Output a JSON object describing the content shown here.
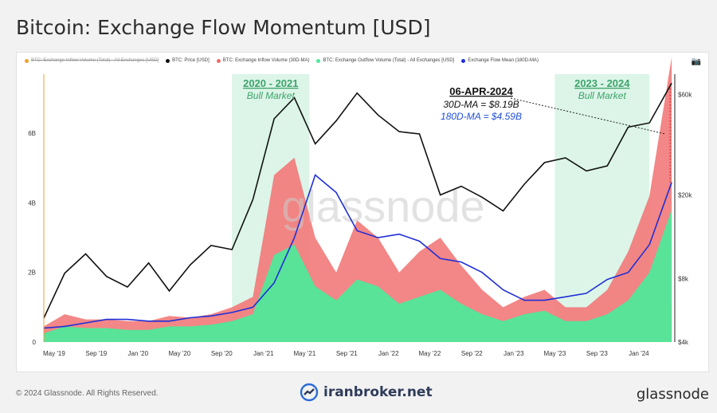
{
  "page": {
    "title": "Bitcoin: Exchange Flow Momentum [USD]",
    "copyright": "© 2024 Glassnode. All Rights Reserved.",
    "watermark_text": "iranbroker.net",
    "brand": "glassnode",
    "chart_watermark": "glassnode"
  },
  "legend": [
    {
      "label": "BTC: Exchange Inflow Volume (Total) - All Exchanges [USD]",
      "color": "#f0a030",
      "struck": true
    },
    {
      "label": "BTC: Price [USD]",
      "color": "#111111",
      "struck": false
    },
    {
      "label": "BTC: Exchange Inflow Volume (30D-MA)",
      "color": "#f06b6b",
      "struck": false
    },
    {
      "label": "BTC: Exchange Outflow Volume (Total) - All Exchanges [USD]",
      "color": "#4fe89a",
      "struck": false
    },
    {
      "label": "Exchange Flow Mean (180D-MA)",
      "color": "#1f2fd6",
      "struck": false
    }
  ],
  "annotations": {
    "bull1_title": "2020 - 2021",
    "bull1_sub": "Bull Market",
    "bull2_title": "2023 - 2024",
    "bull2_sub": "Bull Market",
    "date": "06-APR-2024",
    "ma30": "30D-MA = $8.19B",
    "ma180": "180D-MA = $4.59B"
  },
  "colors": {
    "inflow": "#f27979",
    "outflow": "#4fe89a",
    "price": "#111111",
    "mean": "#1f2fd6",
    "bull_zone": "#dcf5e8",
    "bull_text": "#3da36a",
    "anno_blue": "#1f4fd6",
    "left_axis_line": "#f0a030",
    "current_marker": "#d02020"
  },
  "chart_data": {
    "type": "area",
    "title": "Bitcoin: Exchange Flow Momentum [USD]",
    "x_ticks": [
      "May '19",
      "Sep '19",
      "Jan '20",
      "May '20",
      "Sep '20",
      "Jan '21",
      "May '21",
      "Sep '21",
      "Jan '22",
      "May '22",
      "Sep '22",
      "Jan '23",
      "May '23",
      "Sep '23",
      "Jan '24"
    ],
    "y_left_ticks": [
      "0",
      "2B",
      "4B",
      "6B"
    ],
    "y_left_range": [
      0,
      7.7
    ],
    "y_right_ticks": [
      "$4k",
      "$8k",
      "$20k",
      "$60k"
    ],
    "y_right_range": [
      4000,
      75000
    ],
    "y_right_scale": "log",
    "grid": false,
    "legend_position": "top",
    "x": [
      "2019-04",
      "2019-06",
      "2019-08",
      "2019-10",
      "2019-12",
      "2020-02",
      "2020-04",
      "2020-06",
      "2020-08",
      "2020-10",
      "2020-12",
      "2021-02",
      "2021-04",
      "2021-06",
      "2021-08",
      "2021-10",
      "2021-12",
      "2022-02",
      "2022-04",
      "2022-06",
      "2022-08",
      "2022-10",
      "2022-12",
      "2023-02",
      "2023-04",
      "2023-06",
      "2023-08",
      "2023-10",
      "2023-12",
      "2024-02",
      "2024-04"
    ],
    "series": [
      {
        "name": "BTC: Exchange Inflow Volume (30D-MA)",
        "values": [
          0.45,
          0.8,
          0.65,
          0.65,
          0.6,
          0.6,
          0.75,
          0.7,
          0.8,
          1.0,
          1.3,
          4.8,
          5.3,
          3.0,
          2.0,
          3.5,
          3.0,
          2.0,
          2.6,
          3.0,
          2.2,
          1.5,
          1.0,
          1.3,
          1.5,
          1.0,
          1.0,
          1.5,
          2.6,
          4.2,
          8.19
        ]
      },
      {
        "name": "BTC: Exchange Outflow Volume (Total) - All Exchanges [USD]",
        "values": [
          0.25,
          0.45,
          0.4,
          0.4,
          0.35,
          0.35,
          0.45,
          0.45,
          0.5,
          0.6,
          0.8,
          2.5,
          2.8,
          1.6,
          1.2,
          1.8,
          1.6,
          1.1,
          1.3,
          1.5,
          1.1,
          0.8,
          0.6,
          0.8,
          0.9,
          0.6,
          0.6,
          0.8,
          1.2,
          2.0,
          3.8
        ]
      },
      {
        "name": "Exchange Flow Mean (180D-MA)",
        "values": [
          0.4,
          0.45,
          0.55,
          0.65,
          0.65,
          0.6,
          0.6,
          0.7,
          0.75,
          0.85,
          1.0,
          1.7,
          3.0,
          4.8,
          4.3,
          3.2,
          3.0,
          3.1,
          2.9,
          2.4,
          2.3,
          2.0,
          1.5,
          1.2,
          1.2,
          1.3,
          1.4,
          1.8,
          2.0,
          2.8,
          4.59
        ]
      },
      {
        "name": "BTC: Price [USD]",
        "values": [
          5200,
          8500,
          10500,
          8200,
          7300,
          9500,
          7000,
          9300,
          11500,
          11000,
          19000,
          46000,
          58000,
          35000,
          45000,
          61000,
          48000,
          40000,
          39000,
          20000,
          22000,
          19500,
          16800,
          22500,
          28500,
          30000,
          26000,
          27500,
          42000,
          44000,
          68000
        ]
      }
    ]
  }
}
